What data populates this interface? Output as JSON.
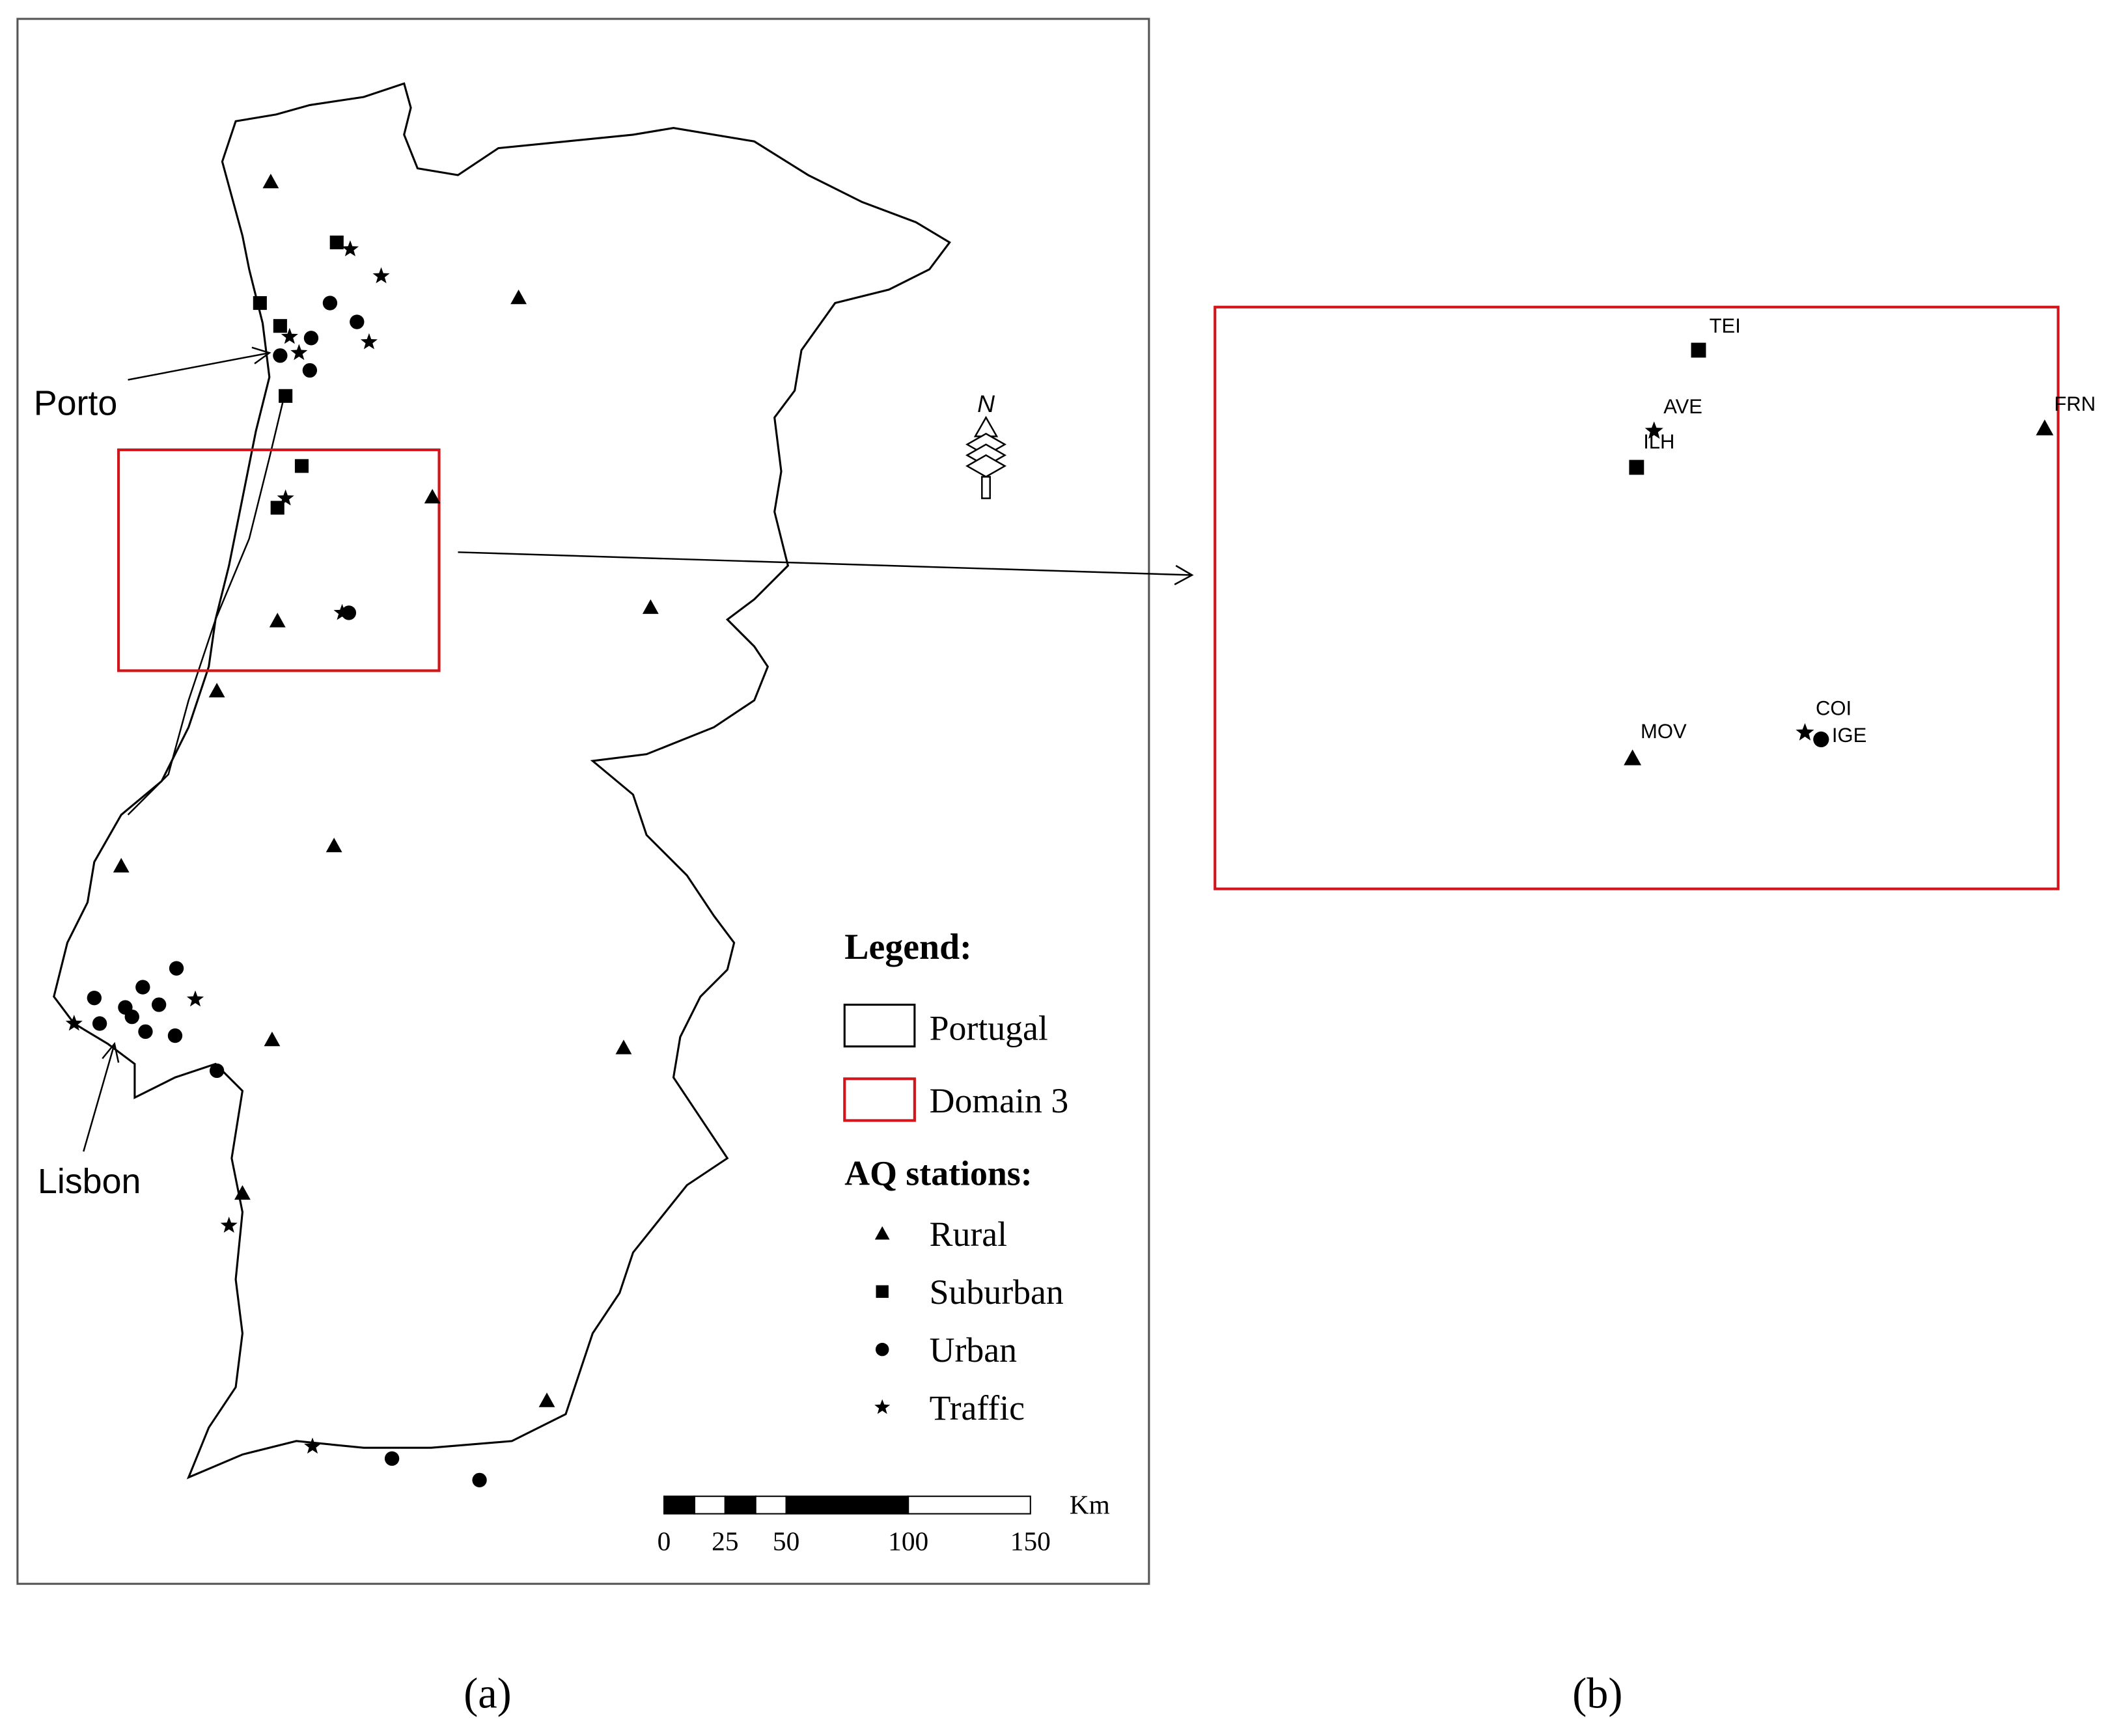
{
  "panel_a": {
    "labels": {
      "porto": "Porto",
      "lisbon": "Lisbon",
      "north": "N"
    },
    "legend": {
      "title": "Legend:",
      "portugal": "Portugal",
      "domain": "Domain 3",
      "stations_title": "AQ stations:",
      "station_types": [
        "Rural",
        "Suburban",
        "Urban",
        "Traffic"
      ]
    },
    "scale_bar": {
      "unit": "Km",
      "ticks": [
        0,
        25,
        50,
        100,
        150
      ]
    }
  },
  "panel_b": {
    "station_labels": [
      "TEI",
      "AVE",
      "ILH",
      "FRN",
      "MOV",
      "COI",
      "IGE"
    ]
  },
  "captions": [
    "(a)",
    "(b)"
  ]
}
